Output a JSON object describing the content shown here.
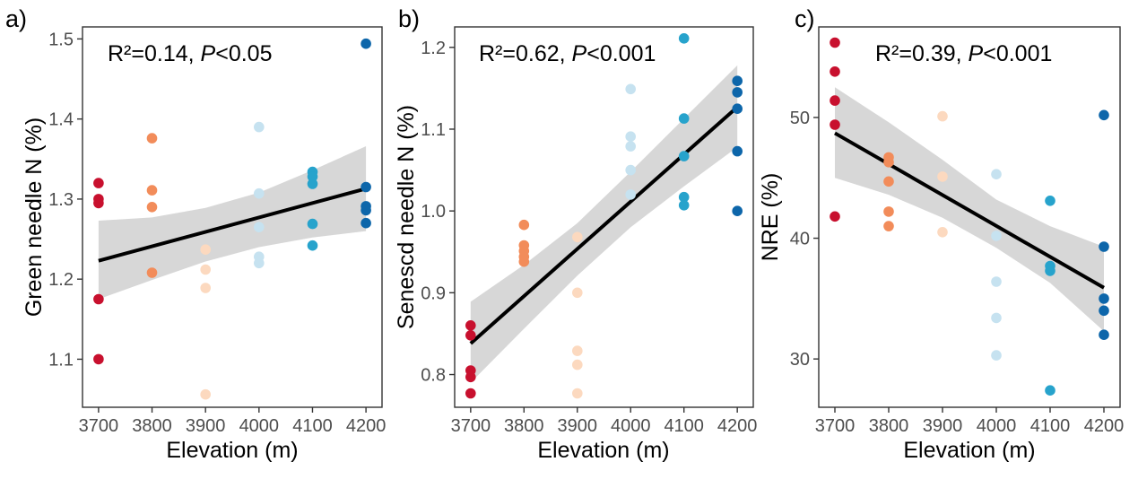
{
  "colors": {
    "3700": "#c8102e",
    "3800": "#f28c5a",
    "3900": "#fcd9bf",
    "4000": "#c6e2f0",
    "4100": "#27a3cc",
    "4200": "#0d66aa",
    "band": "#d3d3d3",
    "line": "#000000"
  },
  "chart_data": [
    {
      "type": "scatter",
      "panel": "a)",
      "stat_r2": "R²=0.14, ",
      "stat_p_symbol": "P",
      "stat_p_value": "<0.05",
      "xlabel": "Elevation (m)",
      "ylabel": "Green needle N (%)",
      "xlim": [
        3670,
        4230
      ],
      "ylim": [
        1.04,
        1.515
      ],
      "xticks": [
        3700,
        3800,
        3900,
        4000,
        4100,
        4200
      ],
      "yticks": [
        1.1,
        1.2,
        1.3,
        1.4,
        1.5
      ],
      "ytick_labels": [
        "1.1",
        "1.2",
        "1.3",
        "1.4",
        "1.5"
      ],
      "points": [
        {
          "x": 3700,
          "y": 1.32
        },
        {
          "x": 3700,
          "y": 1.3
        },
        {
          "x": 3700,
          "y": 1.295
        },
        {
          "x": 3700,
          "y": 1.175
        },
        {
          "x": 3700,
          "y": 1.1
        },
        {
          "x": 3800,
          "y": 1.376
        },
        {
          "x": 3800,
          "y": 1.311
        },
        {
          "x": 3800,
          "y": 1.29
        },
        {
          "x": 3800,
          "y": 1.208
        },
        {
          "x": 3900,
          "y": 1.237
        },
        {
          "x": 3900,
          "y": 1.212
        },
        {
          "x": 3900,
          "y": 1.189
        },
        {
          "x": 3900,
          "y": 1.056
        },
        {
          "x": 4000,
          "y": 1.39
        },
        {
          "x": 4000,
          "y": 1.307
        },
        {
          "x": 4000,
          "y": 1.265
        },
        {
          "x": 4000,
          "y": 1.228
        },
        {
          "x": 4000,
          "y": 1.22
        },
        {
          "x": 4100,
          "y": 1.334
        },
        {
          "x": 4100,
          "y": 1.328
        },
        {
          "x": 4100,
          "y": 1.319
        },
        {
          "x": 4100,
          "y": 1.269
        },
        {
          "x": 4100,
          "y": 1.242
        },
        {
          "x": 4200,
          "y": 1.494
        },
        {
          "x": 4200,
          "y": 1.315
        },
        {
          "x": 4200,
          "y": 1.291
        },
        {
          "x": 4200,
          "y": 1.286
        },
        {
          "x": 4200,
          "y": 1.27
        }
      ],
      "fit": {
        "x": [
          3700,
          4200
        ],
        "y": [
          1.223,
          1.313
        ]
      },
      "ci_lower": [
        1.175,
        1.199,
        1.222,
        1.24,
        1.252,
        1.26
      ],
      "ci_upper": [
        1.273,
        1.277,
        1.289,
        1.308,
        1.336,
        1.366
      ]
    },
    {
      "type": "scatter",
      "panel": "b)",
      "stat_r2": "R²=0.62, ",
      "stat_p_symbol": "P",
      "stat_p_value": "<0.001",
      "xlabel": "Elevation (m)",
      "ylabel": "Senescd needle N (%)",
      "xlim": [
        3670,
        4230
      ],
      "ylim": [
        0.76,
        1.225
      ],
      "xticks": [
        3700,
        3800,
        3900,
        4000,
        4100,
        4200
      ],
      "yticks": [
        0.8,
        0.9,
        1.0,
        1.1,
        1.2
      ],
      "ytick_labels": [
        "0.8",
        "0.9",
        "1.0",
        "1.1",
        "1.2"
      ],
      "points": [
        {
          "x": 3700,
          "y": 0.86
        },
        {
          "x": 3700,
          "y": 0.848
        },
        {
          "x": 3700,
          "y": 0.805
        },
        {
          "x": 3700,
          "y": 0.797
        },
        {
          "x": 3700,
          "y": 0.777
        },
        {
          "x": 3800,
          "y": 0.983
        },
        {
          "x": 3800,
          "y": 0.958
        },
        {
          "x": 3800,
          "y": 0.951
        },
        {
          "x": 3800,
          "y": 0.944
        },
        {
          "x": 3800,
          "y": 0.938
        },
        {
          "x": 3900,
          "y": 0.968
        },
        {
          "x": 3900,
          "y": 0.9
        },
        {
          "x": 3900,
          "y": 0.829
        },
        {
          "x": 3900,
          "y": 0.812
        },
        {
          "x": 3900,
          "y": 0.777
        },
        {
          "x": 4000,
          "y": 1.149
        },
        {
          "x": 4000,
          "y": 1.091
        },
        {
          "x": 4000,
          "y": 1.079
        },
        {
          "x": 4000,
          "y": 1.05
        },
        {
          "x": 4000,
          "y": 1.02
        },
        {
          "x": 4100,
          "y": 1.211
        },
        {
          "x": 4100,
          "y": 1.113
        },
        {
          "x": 4100,
          "y": 1.067
        },
        {
          "x": 4100,
          "y": 1.017
        },
        {
          "x": 4100,
          "y": 1.007
        },
        {
          "x": 4200,
          "y": 1.159
        },
        {
          "x": 4200,
          "y": 1.145
        },
        {
          "x": 4200,
          "y": 1.125
        },
        {
          "x": 4200,
          "y": 1.073
        },
        {
          "x": 4200,
          "y": 1.0
        }
      ],
      "fit": {
        "x": [
          3700,
          4200
        ],
        "y": [
          0.838,
          1.127
        ]
      },
      "ci_lower": [
        0.79,
        0.856,
        0.921,
        0.98,
        1.03,
        1.078
      ],
      "ci_upper": [
        0.889,
        0.934,
        0.985,
        1.048,
        1.113,
        1.178
      ]
    },
    {
      "type": "scatter",
      "panel": "c)",
      "stat_r2": "R²=0.39, ",
      "stat_p_symbol": "P",
      "stat_p_value": "<0.001",
      "xlabel": "Elevation (m)",
      "ylabel": "NRE (%)",
      "xlim": [
        3670,
        4230
      ],
      "ylim": [
        26,
        57.5
      ],
      "xticks": [
        3700,
        3800,
        3900,
        4000,
        4100,
        4200
      ],
      "yticks": [
        30,
        40,
        50
      ],
      "ytick_labels": [
        "30",
        "40",
        "50"
      ],
      "points": [
        {
          "x": 3700,
          "y": 56.2
        },
        {
          "x": 3700,
          "y": 53.8
        },
        {
          "x": 3700,
          "y": 51.4
        },
        {
          "x": 3700,
          "y": 49.4
        },
        {
          "x": 3700,
          "y": 41.8
        },
        {
          "x": 3800,
          "y": 46.7
        },
        {
          "x": 3800,
          "y": 46.3
        },
        {
          "x": 3800,
          "y": 44.7
        },
        {
          "x": 3800,
          "y": 42.2
        },
        {
          "x": 3800,
          "y": 41.0
        },
        {
          "x": 3900,
          "y": 50.1
        },
        {
          "x": 3900,
          "y": 45.1
        },
        {
          "x": 3900,
          "y": 40.5
        },
        {
          "x": 4000,
          "y": 45.3
        },
        {
          "x": 4000,
          "y": 40.2
        },
        {
          "x": 4000,
          "y": 36.4
        },
        {
          "x": 4000,
          "y": 33.4
        },
        {
          "x": 4000,
          "y": 30.3
        },
        {
          "x": 4100,
          "y": 43.1
        },
        {
          "x": 4100,
          "y": 37.7
        },
        {
          "x": 4100,
          "y": 37.3
        },
        {
          "x": 4100,
          "y": 27.4
        },
        {
          "x": 4200,
          "y": 50.2
        },
        {
          "x": 4200,
          "y": 39.3
        },
        {
          "x": 4200,
          "y": 35.0
        },
        {
          "x": 4200,
          "y": 34.0
        },
        {
          "x": 4200,
          "y": 32.0
        }
      ],
      "fit": {
        "x": [
          3700,
          4200
        ],
        "y": [
          48.7,
          35.9
        ]
      },
      "ci_lower": [
        45.0,
        43.6,
        41.7,
        39.2,
        36.3,
        32.3
      ],
      "ci_upper": [
        52.5,
        49.6,
        46.5,
        43.2,
        41.0,
        39.3
      ]
    }
  ]
}
